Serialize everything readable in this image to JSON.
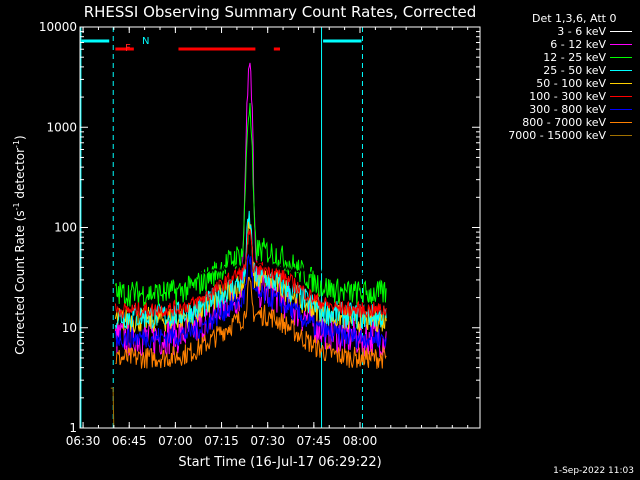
{
  "chart_data": {
    "type": "line",
    "title": "RHESSI Observing Summary Count Rates, Corrected",
    "xlabel": "Start Time (16-Jul-17 06:29:22)",
    "ylabel_main": "Corrected Count Rate (s",
    "ylabel_sup1": "-1",
    "ylabel_mid": " detector",
    "ylabel_sup2": "-1",
    "ylabel_end": ")",
    "yscale": "log",
    "ylim": [
      1,
      10000
    ],
    "xlim_minutes": [
      0,
      130
    ],
    "x_ticks": [
      "06:30",
      "06:45",
      "07:00",
      "07:15",
      "07:30",
      "07:45",
      "08:00"
    ],
    "x_tick_minutes": [
      1,
      16,
      31,
      46,
      61,
      76,
      91
    ],
    "y_ticks": [
      "1",
      "10",
      "100",
      "1000",
      "10000"
    ],
    "y_tick_values": [
      1,
      10,
      100,
      1000,
      10000
    ],
    "legend_header": "Det 1,3,6, Att 0",
    "series": [
      {
        "name": "3 - 6 keV",
        "color": "#000000"
      },
      {
        "name": "6 - 12 keV",
        "color": "#ff00ff"
      },
      {
        "name": "12 - 25 keV",
        "color": "#00ff00"
      },
      {
        "name": "25 - 50 keV",
        "color": "#00ffff"
      },
      {
        "name": "50 - 100 keV",
        "color": "#ffd000"
      },
      {
        "name": "100 - 300 keV",
        "color": "#ff0000"
      },
      {
        "name": "300 - 800 keV",
        "color": "#0000ff"
      },
      {
        "name": "800 - 7000 keV",
        "color": "#ff8000"
      },
      {
        "name": "7000 - 15000 keV",
        "color": "#a07000"
      }
    ],
    "annotations": {
      "flag_f": "F",
      "flag_n": "N",
      "date_stamp": "1-Sep-2022 11:03"
    }
  }
}
